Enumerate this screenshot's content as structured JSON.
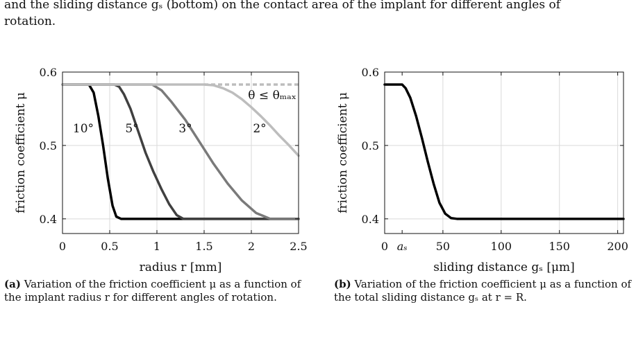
{
  "intro": {
    "line1": "and the sliding distance gₛ (bottom) on the contact area of the implant for different angles of",
    "line2": "rotation."
  },
  "chart_data": [
    {
      "type": "line",
      "xlabel": "radius r [mm]",
      "ylabel": "friction coefficient μ",
      "xlim": [
        0,
        2.5
      ],
      "ylim": [
        0.38,
        0.6
      ],
      "x_ticks": [
        "0",
        "0.5",
        "1",
        "1.5",
        "2",
        "2.5"
      ],
      "x_tick_values": [
        0,
        0.5,
        1,
        1.5,
        2,
        2.5
      ],
      "y_ticks": [
        "0.4",
        "0.5",
        "0.6"
      ],
      "y_tick_values": [
        0.4,
        0.5,
        0.6
      ],
      "grid": true,
      "series": [
        {
          "name": "10°",
          "color": "#000000",
          "x": [
            0,
            0.28,
            0.33,
            0.38,
            0.43,
            0.48,
            0.53,
            0.57,
            0.62,
            2.5
          ],
          "y": [
            0.583,
            0.583,
            0.572,
            0.54,
            0.5,
            0.455,
            0.418,
            0.403,
            0.4,
            0.4
          ]
        },
        {
          "name": "5°",
          "color": "#404040",
          "x": [
            0,
            0.55,
            0.6,
            0.65,
            0.72,
            0.8,
            0.88,
            0.96,
            1.05,
            1.13,
            1.21,
            1.28,
            2.5
          ],
          "y": [
            0.583,
            0.583,
            0.58,
            0.57,
            0.55,
            0.52,
            0.49,
            0.465,
            0.44,
            0.42,
            0.405,
            0.4,
            0.4
          ]
        },
        {
          "name": "3°",
          "color": "#7a7a7a",
          "x": [
            0,
            0.95,
            1.05,
            1.15,
            1.3,
            1.45,
            1.6,
            1.75,
            1.9,
            2.05,
            2.2,
            2.5
          ],
          "y": [
            0.583,
            0.583,
            0.575,
            0.56,
            0.535,
            0.505,
            0.475,
            0.448,
            0.425,
            0.408,
            0.4,
            0.4
          ]
        },
        {
          "name": "2°",
          "color": "#bdbdbd",
          "x": [
            0,
            1.5,
            1.6,
            1.7,
            1.8,
            1.9,
            2.0,
            2.1,
            2.2,
            2.3,
            2.4,
            2.5
          ],
          "y": [
            0.583,
            0.583,
            0.582,
            0.578,
            0.572,
            0.563,
            0.552,
            0.54,
            0.527,
            0.513,
            0.5,
            0.486
          ]
        }
      ],
      "reference_line": {
        "label": "θ ≤ θₘₐₓ",
        "y": 0.583,
        "x_start": 1.5,
        "x_end": 2.5,
        "style": "dashed",
        "color": "#bdbdbd"
      },
      "annotations": [
        "10°",
        "5°",
        "3°",
        "2°",
        "θ ≤ θₘₐₓ"
      ],
      "caption_label": "(a)",
      "caption_text": "Variation of the friction coefficient μ as a function of the implant radius r for different angles of rotation."
    },
    {
      "type": "line",
      "xlabel": "sliding distance gₛ [μm]",
      "ylabel": "friction coefficient μ",
      "xlim": [
        0,
        205
      ],
      "ylim": [
        0.38,
        0.6
      ],
      "x_ticks": [
        "0",
        "aₛ",
        "50",
        "100",
        "150",
        "200"
      ],
      "x_tick_values": [
        0,
        15,
        50,
        100,
        150,
        200
      ],
      "y_ticks": [
        "0.4",
        "0.5",
        "0.6"
      ],
      "y_tick_values": [
        0.4,
        0.5,
        0.6
      ],
      "grid": true,
      "series": [
        {
          "name": "",
          "color": "#000000",
          "x": [
            0,
            15,
            18,
            22,
            27,
            32,
            37,
            42,
            47,
            52,
            57,
            62,
            205
          ],
          "y": [
            0.583,
            0.583,
            0.578,
            0.565,
            0.54,
            0.51,
            0.478,
            0.448,
            0.422,
            0.407,
            0.401,
            0.4,
            0.4
          ]
        }
      ],
      "caption_label": "(b)",
      "caption_text": "Variation of the friction coefficient μ as a function of the total sliding distance gₛ at r = R."
    }
  ]
}
